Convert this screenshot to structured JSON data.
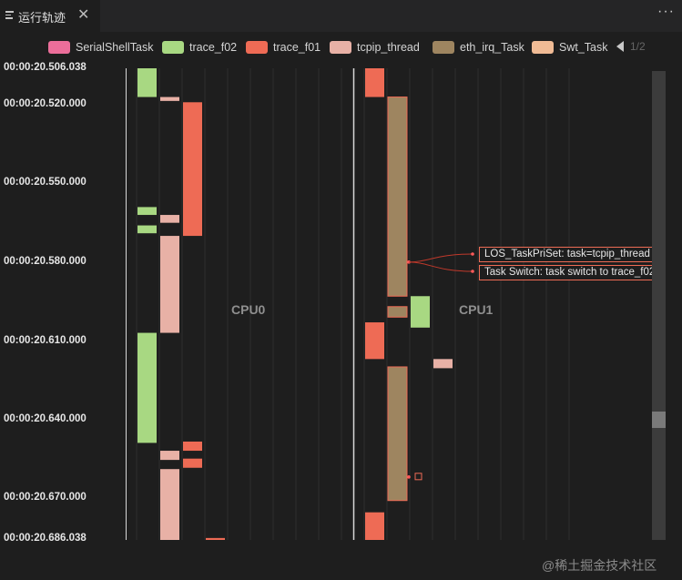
{
  "tab": {
    "title": "运行轨迹",
    "close": "✕",
    "more": "···",
    "icon": "list-icon"
  },
  "legend": {
    "items": [
      {
        "name": "SerialShellTask",
        "color": "#ec6e9a"
      },
      {
        "name": "trace_f02",
        "color": "#a8d882"
      },
      {
        "name": "trace_f01",
        "color": "#ee6b55"
      },
      {
        "name": "tcpip_thread",
        "color": "#e8b1a6"
      },
      {
        "name": "eth_irq_Task",
        "color": "#9e8560"
      },
      {
        "name": "Swt_Task",
        "color": "#f0bb95"
      }
    ],
    "page": "1/2"
  },
  "axis": {
    "labels": [
      "00:00:20.506.038",
      "00:00:20.520.000",
      "00:00:20.550.000",
      "00:00:20.580.000",
      "00:00:20.610.000",
      "00:00:20.640.000",
      "00:00:20.670.000",
      "00:00:20.686.038"
    ]
  },
  "chart_data": {
    "type": "timeline",
    "y_unit": "ms (00:00:20.xxx)",
    "ylim": [
      506.038,
      686.038
    ],
    "y_ticks": [
      506.038,
      520,
      550,
      580,
      610,
      640,
      670,
      686.038
    ],
    "cpus": [
      {
        "name": "CPU0",
        "bars": [
          {
            "task": "trace_f02",
            "lane": 0,
            "start": 506.038,
            "end": 517.0
          },
          {
            "task": "trace_f02",
            "lane": 0,
            "start": 559.0,
            "end": 562.0
          },
          {
            "task": "trace_f02",
            "lane": 0,
            "start": 566.0,
            "end": 569.0
          },
          {
            "task": "trace_f02",
            "lane": 0,
            "start": 607.0,
            "end": 649.0
          },
          {
            "task": "tcpip_thread",
            "lane": 1,
            "start": 517.0,
            "end": 518.5
          },
          {
            "task": "tcpip_thread",
            "lane": 1,
            "start": 562.0,
            "end": 565.0
          },
          {
            "task": "tcpip_thread",
            "lane": 1,
            "start": 570.0,
            "end": 607.0
          },
          {
            "task": "tcpip_thread",
            "lane": 1,
            "start": 652.0,
            "end": 655.5
          },
          {
            "task": "tcpip_thread",
            "lane": 1,
            "start": 659.0,
            "end": 686.038
          },
          {
            "task": "trace_f01",
            "lane": 2,
            "start": 519.0,
            "end": 570.0
          },
          {
            "task": "trace_f01",
            "lane": 2,
            "start": 648.5,
            "end": 652.0
          },
          {
            "task": "trace_f01",
            "lane": 2,
            "start": 655.0,
            "end": 658.5
          },
          {
            "task": "trace_f01",
            "lane": 3,
            "start": 685.3,
            "end": 686.038
          }
        ]
      },
      {
        "name": "CPU1",
        "bars": [
          {
            "task": "trace_f01",
            "lane": 0,
            "start": 506.038,
            "end": 517.0
          },
          {
            "task": "trace_f01",
            "lane": 0,
            "start": 603.0,
            "end": 617.0
          },
          {
            "task": "trace_f01",
            "lane": 0,
            "start": 675.5,
            "end": 686.038
          },
          {
            "task": "eth_irq_Task",
            "lane": 1,
            "start": 517.0,
            "end": 593.0
          },
          {
            "task": "eth_irq_Task",
            "lane": 1,
            "start": 597.0,
            "end": 601.0
          },
          {
            "task": "eth_irq_Task",
            "lane": 1,
            "start": 620.0,
            "end": 671.0
          },
          {
            "task": "trace_f02",
            "lane": 2,
            "start": 593.0,
            "end": 605.0
          },
          {
            "task": "tcpip_thread",
            "lane": 3,
            "start": 617.0,
            "end": 620.5
          }
        ]
      }
    ],
    "annotations": [
      {
        "text": "LOS_TaskPriSet: task=tcpip_thread",
        "time": 580.0
      },
      {
        "text": "Task Switch: task switch to trace_f02",
        "time": 580.0
      }
    ],
    "marker_time": 662.0
  },
  "watermark": "@稀土掘金技术社区"
}
